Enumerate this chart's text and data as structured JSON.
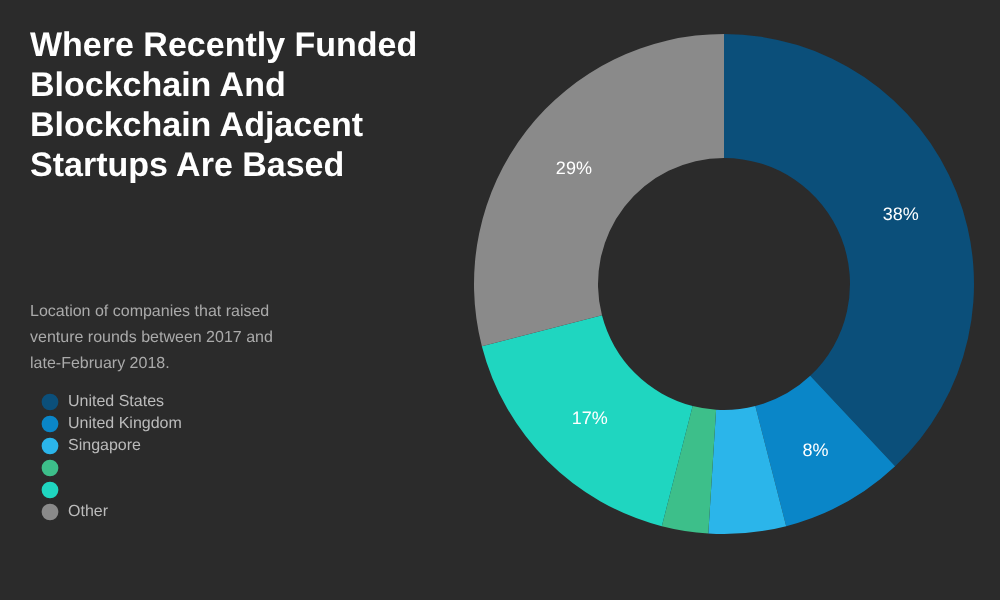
{
  "chart_data": {
    "type": "donut",
    "title": "Where Recently Funded Blockchain And Blockchain Adjacent Startups Are Based",
    "subtitle": "Location of companies that raised venture rounds between 2017 and late-February 2018.",
    "categories": [
      "United States",
      "United Kingdom",
      "Singapore",
      null,
      null,
      "Other"
    ],
    "values": [
      38,
      8,
      5,
      3,
      17,
      29
    ],
    "value_labels": [
      "38%",
      "8%",
      null,
      null,
      "17%",
      "29%"
    ],
    "colors": [
      "#0b4f7a",
      "#0a86c8",
      "#2bb5ea",
      "#3dbf8a",
      "#1fd6c0",
      "#8a8a8a"
    ],
    "legend": "left"
  }
}
